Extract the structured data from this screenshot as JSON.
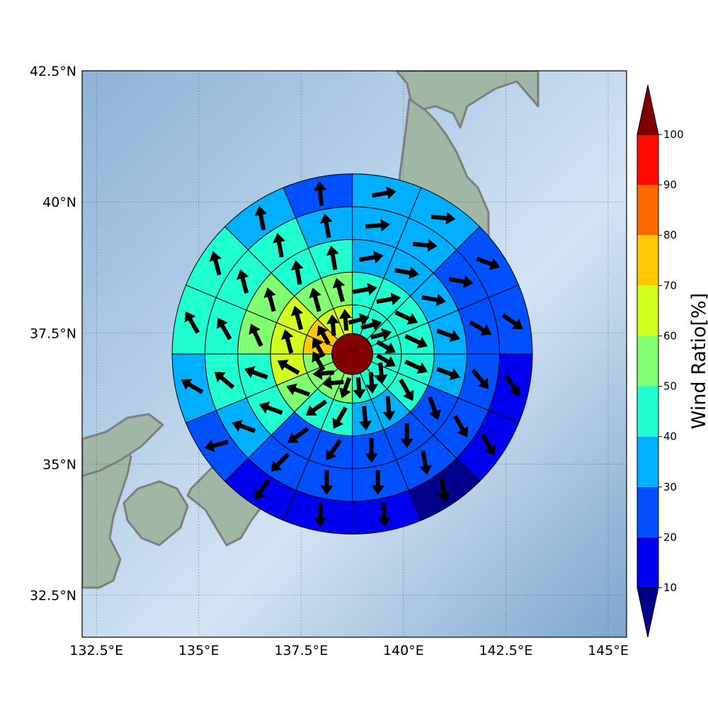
{
  "map": {
    "lon_range": [
      132.15,
      145.45
    ],
    "lat_range": [
      31.7,
      42.5
    ],
    "lon_ticks": [
      {
        "value": 132.5,
        "label": "132.5°E"
      },
      {
        "value": 135.0,
        "label": "135°E"
      },
      {
        "value": 137.5,
        "label": "137.5°E"
      },
      {
        "value": 140.0,
        "label": "140°E"
      },
      {
        "value": 142.5,
        "label": "142.5°E"
      },
      {
        "value": 145.0,
        "label": "145°E"
      }
    ],
    "lat_ticks": [
      {
        "value": 32.5,
        "label": "32.5°N"
      },
      {
        "value": 35.0,
        "label": "35°N"
      },
      {
        "value": 37.5,
        "label": "37.5°N"
      },
      {
        "value": 40.0,
        "label": "40°N"
      },
      {
        "value": 42.5,
        "label": "42.5°N"
      }
    ],
    "colors": {
      "ocean_light": "#c9dcee",
      "ocean_dark": "#7da8cf",
      "land": "#9fb7a4",
      "coast": "#7f7f7f",
      "grid": "#555555"
    }
  },
  "polar_grid": {
    "center": {
      "lon": 138.75,
      "lat": 37.1
    },
    "core_color": "#800000",
    "ring_boundaries_deg": [
      0.5,
      1.2,
      2.0,
      2.8,
      3.6,
      4.4
    ],
    "sectors": 16,
    "sector_start_bearing": 0,
    "rings": [
      {
        "values": [
          42,
          42,
          42,
          42,
          42,
          42,
          42,
          42,
          55,
          55,
          55,
          55,
          75,
          75,
          65,
          65
        ],
        "dirs": [
          75,
          75,
          75,
          120,
          120,
          175,
          175,
          175,
          200,
          265,
          265,
          330,
          330,
          330,
          355,
          355
        ]
      },
      {
        "values": [
          42,
          42,
          42,
          42,
          42,
          42,
          38,
          38,
          45,
          45,
          55,
          65,
          65,
          65,
          55,
          55
        ],
        "dirs": [
          80,
          80,
          115,
          115,
          115,
          150,
          175,
          175,
          210,
          235,
          290,
          300,
          345,
          345,
          345,
          345
        ]
      },
      {
        "values": [
          35,
          35,
          35,
          35,
          35,
          25,
          20,
          25,
          25,
          25,
          45,
          45,
          55,
          55,
          45,
          45
        ],
        "dirs": [
          80,
          100,
          100,
          110,
          110,
          160,
          180,
          180,
          215,
          235,
          290,
          290,
          335,
          345,
          350,
          350
        ]
      },
      {
        "values": [
          35,
          35,
          25,
          25,
          25,
          25,
          20,
          20,
          20,
          20,
          35,
          45,
          45,
          45,
          45,
          35
        ],
        "dirs": [
          85,
          95,
          100,
          120,
          140,
          150,
          170,
          180,
          180,
          225,
          290,
          310,
          330,
          345,
          350,
          350
        ]
      },
      {
        "values": [
          35,
          35,
          25,
          25,
          15,
          15,
          5,
          15,
          15,
          15,
          25,
          35,
          45,
          45,
          35,
          25
        ],
        "dirs": [
          80,
          95,
          110,
          125,
          145,
          150,
          170,
          175,
          180,
          215,
          255,
          300,
          330,
          345,
          350,
          355
        ]
      },
      {
        "values": [
          35,
          25,
          25,
          15,
          15,
          15,
          5,
          15,
          15,
          15,
          25,
          35,
          45,
          45,
          35,
          25
        ],
        "dirs": [
          80,
          95,
          115,
          130,
          150,
          160,
          170,
          175,
          180,
          210,
          250,
          295,
          330,
          345,
          350,
          355
        ]
      }
    ]
  },
  "colorbar": {
    "label": "Wind Ratio[%]",
    "ticks": [
      "10",
      "20",
      "30",
      "40",
      "50",
      "60",
      "70",
      "80",
      "90",
      "100"
    ],
    "colors": [
      "#00008b",
      "#0000ee",
      "#0050ff",
      "#00b0ff",
      "#20ffd0",
      "#80ff70",
      "#d0ff20",
      "#ffc800",
      "#ff6a00",
      "#ff0a00",
      "#7f0000"
    ]
  }
}
